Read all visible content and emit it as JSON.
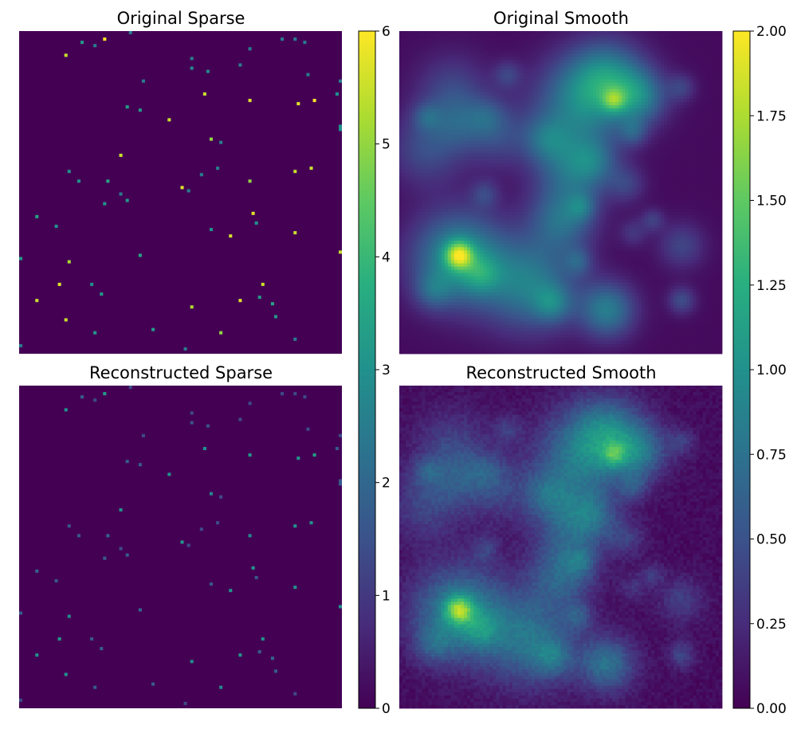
{
  "chart_data": [
    {
      "type": "heatmap",
      "title": "Original Sparse",
      "colormap": "viridis",
      "vmin": 0,
      "vmax": 6,
      "grid_size": [
        100,
        100
      ],
      "colorbar_ticks": [
        "0",
        "1",
        "2",
        "3",
        "4",
        "5",
        "6"
      ],
      "points": [
        [
          26,
          2,
          6
        ],
        [
          19,
          3,
          3.2
        ],
        [
          23,
          4,
          2.5
        ],
        [
          34,
          0,
          2.5
        ],
        [
          81,
          2,
          2.5
        ],
        [
          85,
          2,
          2.5
        ],
        [
          14,
          7,
          5.5
        ],
        [
          53,
          8,
          2.5
        ],
        [
          88,
          3,
          2.5
        ],
        [
          71,
          5,
          2.5
        ],
        [
          53,
          11,
          2.8
        ],
        [
          58,
          12,
          2.8
        ],
        [
          38,
          15,
          2.5
        ],
        [
          89,
          13,
          2.5
        ],
        [
          68,
          10,
          2.5
        ],
        [
          100,
          15,
          2.5
        ],
        [
          57,
          19,
          5.5
        ],
        [
          71,
          21,
          5.7
        ],
        [
          33,
          23,
          3.3
        ],
        [
          37,
          24,
          3.2
        ],
        [
          86,
          22,
          5.7
        ],
        [
          91,
          21,
          6
        ],
        [
          98,
          19,
          3
        ],
        [
          46,
          27,
          5.5
        ],
        [
          100,
          29,
          3
        ],
        [
          59,
          33,
          5
        ],
        [
          99,
          30,
          3
        ],
        [
          62,
          34,
          2.5
        ],
        [
          31,
          38,
          5.5
        ],
        [
          85,
          43,
          5.5
        ],
        [
          90,
          42,
          5.5
        ],
        [
          56,
          44,
          2.5
        ],
        [
          61,
          42,
          2.5
        ],
        [
          15,
          43,
          3
        ],
        [
          18,
          46,
          3
        ],
        [
          27,
          46,
          3.5
        ],
        [
          71,
          46,
          5
        ],
        [
          52,
          49,
          2.5
        ],
        [
          31,
          50,
          2.5
        ],
        [
          33,
          52,
          3.2
        ],
        [
          50,
          48,
          5.7
        ],
        [
          26,
          53,
          3.1
        ],
        [
          72,
          56,
          5.7
        ],
        [
          5,
          57,
          3.5
        ],
        [
          11,
          60,
          3
        ],
        [
          73,
          59,
          3
        ],
        [
          59,
          61,
          3
        ],
        [
          65,
          63,
          5.6
        ],
        [
          85,
          62,
          5.5
        ],
        [
          37,
          69,
          3.5
        ],
        [
          0,
          70,
          3.2
        ],
        [
          15,
          71,
          5.2
        ],
        [
          99,
          68,
          5.5
        ],
        [
          12,
          78,
          5.7
        ],
        [
          22,
          78,
          3
        ],
        [
          75,
          78,
          5.5
        ],
        [
          25,
          81,
          3.2
        ],
        [
          5,
          83,
          5.5
        ],
        [
          68,
          83,
          5.7
        ],
        [
          53,
          85,
          5.3
        ],
        [
          74,
          82,
          3.2
        ],
        [
          78,
          84,
          3.5
        ],
        [
          14,
          89,
          5.5
        ],
        [
          79,
          88,
          3.2
        ],
        [
          23,
          93,
          3.2
        ],
        [
          41,
          92,
          3.2
        ],
        [
          62,
          93,
          5
        ],
        [
          85,
          95,
          2.5
        ],
        [
          51,
          98,
          2.5
        ],
        [
          0,
          97,
          2.5
        ]
      ]
    },
    {
      "type": "heatmap",
      "title": "Original Smooth",
      "colormap": "viridis",
      "vmin": 0,
      "vmax": 2.0,
      "grid_size": [
        100,
        100
      ],
      "colorbar_ticks": [
        "0.00",
        "0.25",
        "0.50",
        "0.75",
        "1.00",
        "1.25",
        "1.50",
        "1.75",
        "2.00"
      ],
      "blobs": [
        [
          18,
          70,
          10,
          0.95
        ],
        [
          40,
          78,
          10,
          0.75
        ],
        [
          50,
          58,
          7,
          0.6
        ],
        [
          53,
          42,
          8,
          0.6
        ],
        [
          55,
          22,
          10,
          0.7
        ],
        [
          64,
          14,
          8,
          0.75
        ],
        [
          74,
          20,
          6,
          0.65
        ],
        [
          16,
          18,
          8,
          0.35
        ],
        [
          30,
          32,
          7,
          0.35
        ],
        [
          45,
          33,
          5,
          0.4
        ],
        [
          64,
          86,
          6,
          0.75
        ],
        [
          87,
          66,
          5,
          0.35
        ],
        [
          87,
          83,
          3,
          0.4
        ],
        [
          8,
          36,
          8,
          0.4
        ],
        [
          18,
          28,
          6,
          0.3
        ],
        [
          27,
          26,
          4,
          0.25
        ],
        [
          66,
          21,
          2.5,
          0.55
        ],
        [
          18,
          69,
          3,
          1.0
        ],
        [
          70,
          47,
          4,
          0.3
        ],
        [
          60,
          40,
          5,
          0.35
        ],
        [
          47,
          84,
          4,
          0.45
        ],
        [
          10,
          80,
          4,
          0.35
        ],
        [
          25,
          75,
          4,
          0.35
        ],
        [
          72,
          31,
          3,
          0.35
        ],
        [
          26,
          50,
          3,
          0.3
        ],
        [
          33,
          13,
          3,
          0.3
        ],
        [
          87,
          17,
          3,
          0.3
        ],
        [
          55,
          71,
          3,
          0.35
        ],
        [
          72,
          62,
          3,
          0.25
        ],
        [
          78,
          58,
          2.5,
          0.3
        ],
        [
          8,
          26,
          3,
          0.3
        ],
        [
          56,
          54,
          3,
          0.35
        ]
      ]
    },
    {
      "type": "heatmap",
      "title": "Reconstructed Sparse",
      "colormap": "viridis",
      "vmin": 0,
      "vmax": 6,
      "grid_size": [
        100,
        100
      ],
      "source": "Original Sparse",
      "amplitude_scale": 0.55
    },
    {
      "type": "heatmap",
      "title": "Reconstructed Smooth",
      "colormap": "viridis",
      "vmin": 0,
      "vmax": 2.0,
      "grid_size": [
        100,
        100
      ],
      "source": "Original Smooth",
      "amplitude_scale": 0.88,
      "noise": 0.12
    }
  ]
}
